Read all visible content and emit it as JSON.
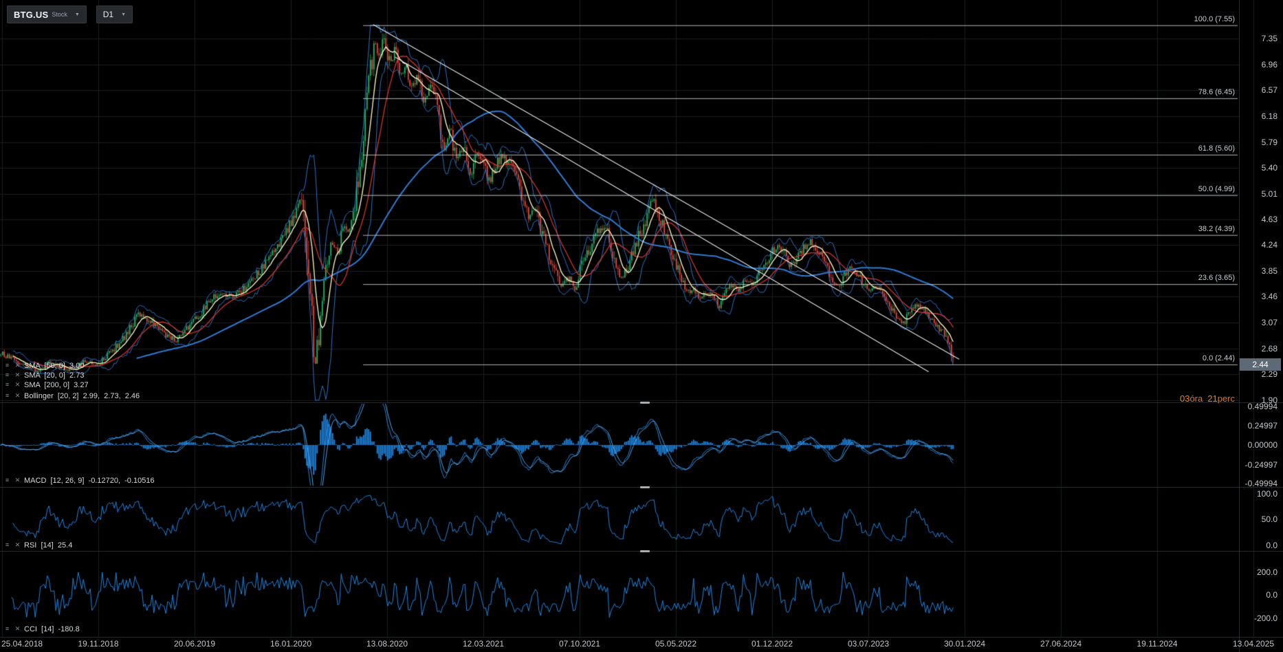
{
  "header": {
    "symbol": "BTG.US",
    "instrument_type": "Stock",
    "timeframe": "D1"
  },
  "studies": {
    "main": [
      {
        "label": "SMA  [50, 0]  3.00"
      },
      {
        "label": "SMA  [20, 0]  2.73"
      },
      {
        "label": "SMA  [200, 0]  3.27"
      },
      {
        "label": "Bollinger  [20, 2]  2.99,  2.73,  2.46"
      }
    ],
    "macd": {
      "label": "MACD  [12, 26, 9]  -0.12720,  -0.10516",
      "axis": [
        "0.49994",
        "0.24997",
        "0.00000",
        "-0.24997",
        "-0.49994"
      ]
    },
    "rsi": {
      "label": "RSI  [14]  25.4",
      "axis": [
        "100.0",
        "50.0",
        "0.0"
      ]
    },
    "cci": {
      "label": "CCI  [14]  -180.8",
      "axis": [
        "200.0",
        "0.0",
        "-200.0"
      ]
    }
  },
  "price_axis": {
    "tick_labels": [
      "7.35",
      "6.96",
      "6.57",
      "6.18",
      "5.79",
      "5.40",
      "5.01",
      "4.63",
      "4.24",
      "3.85",
      "3.46",
      "3.07",
      "2.68",
      "2.29",
      "1.90"
    ],
    "current_price": "2.44"
  },
  "countdown": {
    "hours": "03",
    "hours_unit": "óra",
    "minutes": "21",
    "minutes_unit": "perc"
  },
  "fibonacci": [
    {
      "label": "100.0 (7.55)",
      "price": 7.55
    },
    {
      "label": "78.6 (6.45)",
      "price": 6.45
    },
    {
      "label": "61.8 (5.60)",
      "price": 5.6
    },
    {
      "label": "50.0 (4.99)",
      "price": 4.99
    },
    {
      "label": "38.2 (4.39)",
      "price": 4.39
    },
    {
      "label": "23.6 (3.65)",
      "price": 3.65
    },
    {
      "label": "0.0 (2.44)",
      "price": 2.44
    }
  ],
  "time_axis": {
    "dates": [
      "25.04.2018",
      "19.11.2018",
      "20.06.2019",
      "16.01.2020",
      "13.08.2020",
      "12.03.2021",
      "07.10.2021",
      "05.05.2022",
      "01.12.2022",
      "03.07.2023",
      "30.01.2024",
      "27.06.2024",
      "19.11.2024",
      "13.04.2025"
    ]
  },
  "chart_data": {
    "type": "candlestick",
    "symbol": "BTG.US",
    "timeframe": "D1",
    "y_range": [
      1.9,
      7.55
    ],
    "visible_date_range": [
      "25.04.2018",
      "13.04.2025"
    ],
    "last_close": 2.44,
    "overlay_values": {
      "sma50": 3.0,
      "sma20": 2.73,
      "sma200": 3.27,
      "bollinger": [
        2.99,
        2.73,
        2.46
      ]
    },
    "indicator_values": {
      "macd": [
        -0.1272,
        -0.10516
      ],
      "rsi": 25.4,
      "cci": -180.8
    },
    "fib_levels": [
      7.55,
      6.45,
      5.6,
      4.99,
      4.39,
      3.65,
      2.44
    ],
    "trendlines": [
      {
        "points": [
          [
            0.391,
            7.56
          ],
          [
            1.005,
            2.52
          ]
        ]
      },
      {
        "points": [
          [
            0.414,
            7.07
          ],
          [
            0.973,
            2.33
          ]
        ]
      }
    ],
    "price_path": [
      [
        0.0,
        2.62
      ],
      [
        0.012,
        2.52
      ],
      [
        0.026,
        2.42
      ],
      [
        0.039,
        2.32
      ],
      [
        0.052,
        2.46
      ],
      [
        0.064,
        2.4
      ],
      [
        0.077,
        2.35
      ],
      [
        0.09,
        2.5
      ],
      [
        0.103,
        2.44
      ],
      [
        0.12,
        2.68
      ],
      [
        0.133,
        2.9
      ],
      [
        0.146,
        3.2
      ],
      [
        0.159,
        3.08
      ],
      [
        0.172,
        2.9
      ],
      [
        0.185,
        2.8
      ],
      [
        0.197,
        3.0
      ],
      [
        0.21,
        3.2
      ],
      [
        0.221,
        3.42
      ],
      [
        0.232,
        3.52
      ],
      [
        0.245,
        3.44
      ],
      [
        0.258,
        3.62
      ],
      [
        0.27,
        3.8
      ],
      [
        0.283,
        4.05
      ],
      [
        0.296,
        4.35
      ],
      [
        0.309,
        4.7
      ],
      [
        0.316,
        4.92
      ],
      [
        0.321,
        4.3
      ],
      [
        0.326,
        3.4
      ],
      [
        0.33,
        2.4
      ],
      [
        0.335,
        3.1
      ],
      [
        0.339,
        3.85
      ],
      [
        0.348,
        4.3
      ],
      [
        0.354,
        4.1
      ],
      [
        0.36,
        4.55
      ],
      [
        0.367,
        4.45
      ],
      [
        0.374,
        5.1
      ],
      [
        0.381,
        6.0
      ],
      [
        0.388,
        6.9
      ],
      [
        0.393,
        7.3
      ],
      [
        0.398,
        7.1
      ],
      [
        0.403,
        7.42
      ],
      [
        0.409,
        6.9
      ],
      [
        0.414,
        7.2
      ],
      [
        0.419,
        6.78
      ],
      [
        0.425,
        7.02
      ],
      [
        0.431,
        6.6
      ],
      [
        0.438,
        6.88
      ],
      [
        0.445,
        6.42
      ],
      [
        0.451,
        6.72
      ],
      [
        0.458,
        6.25
      ],
      [
        0.465,
        5.72
      ],
      [
        0.472,
        5.95
      ],
      [
        0.479,
        5.5
      ],
      [
        0.486,
        5.72
      ],
      [
        0.493,
        5.32
      ],
      [
        0.5,
        5.6
      ],
      [
        0.506,
        5.42
      ],
      [
        0.513,
        5.22
      ],
      [
        0.52,
        5.48
      ],
      [
        0.527,
        5.6
      ],
      [
        0.534,
        5.45
      ],
      [
        0.541,
        5.25
      ],
      [
        0.548,
        4.92
      ],
      [
        0.554,
        4.62
      ],
      [
        0.561,
        4.82
      ],
      [
        0.568,
        4.42
      ],
      [
        0.575,
        4.1
      ],
      [
        0.582,
        3.8
      ],
      [
        0.589,
        3.62
      ],
      [
        0.596,
        3.74
      ],
      [
        0.603,
        3.6
      ],
      [
        0.609,
        3.9
      ],
      [
        0.616,
        4.12
      ],
      [
        0.623,
        4.35
      ],
      [
        0.63,
        4.52
      ],
      [
        0.637,
        4.4
      ],
      [
        0.644,
        4.02
      ],
      [
        0.651,
        3.72
      ],
      [
        0.657,
        3.9
      ],
      [
        0.664,
        4.2
      ],
      [
        0.671,
        4.42
      ],
      [
        0.678,
        4.68
      ],
      [
        0.685,
        4.95
      ],
      [
        0.692,
        4.65
      ],
      [
        0.699,
        4.32
      ],
      [
        0.706,
        4.02
      ],
      [
        0.712,
        3.78
      ],
      [
        0.719,
        3.5
      ],
      [
        0.726,
        3.6
      ],
      [
        0.733,
        3.4
      ],
      [
        0.74,
        3.55
      ],
      [
        0.747,
        3.45
      ],
      [
        0.754,
        3.32
      ],
      [
        0.76,
        3.52
      ],
      [
        0.767,
        3.62
      ],
      [
        0.774,
        3.55
      ],
      [
        0.781,
        3.7
      ],
      [
        0.788,
        3.62
      ],
      [
        0.795,
        3.8
      ],
      [
        0.802,
        3.95
      ],
      [
        0.808,
        4.1
      ],
      [
        0.815,
        4.25
      ],
      [
        0.822,
        4.1
      ],
      [
        0.829,
        3.92
      ],
      [
        0.836,
        4.05
      ],
      [
        0.843,
        4.22
      ],
      [
        0.85,
        4.3
      ],
      [
        0.857,
        4.15
      ],
      [
        0.863,
        3.95
      ],
      [
        0.87,
        3.8
      ],
      [
        0.877,
        3.62
      ],
      [
        0.884,
        3.75
      ],
      [
        0.891,
        3.9
      ],
      [
        0.898,
        3.8
      ],
      [
        0.905,
        3.65
      ],
      [
        0.911,
        3.52
      ],
      [
        0.918,
        3.62
      ],
      [
        0.925,
        3.45
      ],
      [
        0.932,
        3.3
      ],
      [
        0.939,
        3.15
      ],
      [
        0.946,
        3.05
      ],
      [
        0.953,
        3.2
      ],
      [
        0.959,
        3.35
      ],
      [
        0.966,
        3.3
      ],
      [
        0.973,
        3.18
      ],
      [
        0.98,
        3.05
      ],
      [
        0.987,
        2.95
      ],
      [
        0.994,
        2.75
      ],
      [
        1.0,
        2.44
      ]
    ]
  },
  "colors": {
    "background": "#000000",
    "grid": "#1a1c1f",
    "candle_up": "#1db567",
    "candle_down": "#e0463c",
    "sma20": "#f3efbe",
    "sma50": "#d8342c",
    "sma200": "#2e7cd4",
    "bollinger": "#2b74c8",
    "indicator": "#1e88e5",
    "indicator_signal": "#54a6ea",
    "fib": "#c9cdd2",
    "trendline": "#e4e7ea",
    "axis_text": "#c3c7cb",
    "legend_text": "#d6d9dc",
    "accent_number": "#ef8318",
    "accent_unit": "#c97a2e",
    "price_badge_bg": "#5d6a75",
    "panel_separator": "#26292c",
    "header_bg": "#26292d",
    "header_border": "#35393d"
  }
}
